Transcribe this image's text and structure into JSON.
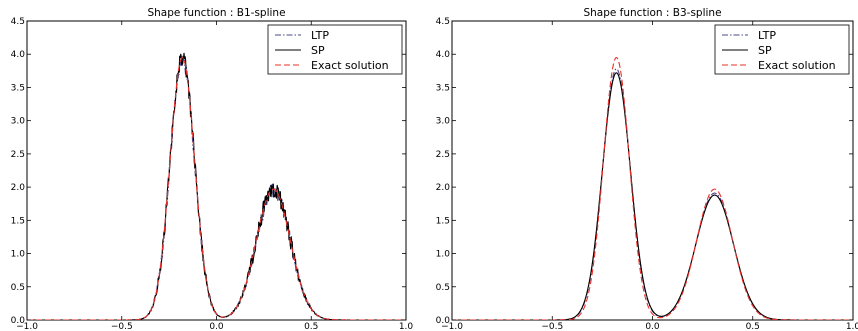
{
  "chart_data": [
    {
      "type": "line",
      "title": "Shape function : B1-spline",
      "xlim": [
        -1.0,
        1.0
      ],
      "ylim": [
        0.0,
        4.5
      ],
      "xticks": [
        -1.0,
        -0.5,
        0.0,
        0.5,
        1.0
      ],
      "xtick_labels": [
        "−1.0",
        "−0.5",
        "0.0",
        "0.5",
        "1.0"
      ],
      "yticks": [
        0.0,
        0.5,
        1.0,
        1.5,
        2.0,
        2.5,
        3.0,
        3.5,
        4.0,
        4.5
      ],
      "ytick_labels": [
        "0.0",
        "0.5",
        "1.0",
        "1.5",
        "2.0",
        "2.5",
        "3.0",
        "3.5",
        "4.0",
        "4.5"
      ],
      "grid": false,
      "legend_position": "top-right",
      "series": [
        {
          "name": "LTP",
          "style": "dashdot",
          "color": "#4a4a8c",
          "model": {
            "peaks": [
              [
                -0.18,
                3.92,
                0.065
              ],
              [
                0.3,
                1.95,
                0.09
              ]
            ],
            "noise": 0.11
          }
        },
        {
          "name": "SP",
          "style": "solid",
          "color": "#000000",
          "model": {
            "peaks": [
              [
                -0.18,
                3.95,
                0.065
              ],
              [
                0.3,
                1.97,
                0.09
              ]
            ],
            "noise": 0.13
          }
        },
        {
          "name": "Exact solution",
          "style": "dashed",
          "color": "#e8302a",
          "model": {
            "peaks": [
              [
                -0.18,
                3.95,
                0.065
              ],
              [
                0.3,
                1.97,
                0.09
              ]
            ],
            "noise": 0
          }
        }
      ]
    },
    {
      "type": "line",
      "title": "Shape function : B3-spline",
      "xlim": [
        -1.0,
        1.0
      ],
      "ylim": [
        0.0,
        4.5
      ],
      "xticks": [
        -1.0,
        -0.5,
        0.0,
        0.5,
        1.0
      ],
      "xtick_labels": [
        "−1.0",
        "−0.5",
        "0.0",
        "0.5",
        "1.0"
      ],
      "yticks": [
        0.0,
        0.5,
        1.0,
        1.5,
        2.0,
        2.5,
        3.0,
        3.5,
        4.0,
        4.5
      ],
      "ytick_labels": [
        "0.0",
        "0.5",
        "1.0",
        "1.5",
        "2.0",
        "2.5",
        "3.0",
        "3.5",
        "4.0",
        "4.5"
      ],
      "grid": false,
      "legend_position": "top-right",
      "series": [
        {
          "name": "LTP",
          "style": "dashdot",
          "color": "#4a4a8c",
          "model": {
            "peaks": [
              [
                -0.18,
                3.78,
                0.069
              ],
              [
                0.31,
                1.91,
                0.093
              ]
            ],
            "noise": 0
          }
        },
        {
          "name": "SP",
          "style": "solid",
          "color": "#000000",
          "model": {
            "peaks": [
              [
                -0.18,
                3.72,
                0.07
              ],
              [
                0.31,
                1.88,
                0.094
              ]
            ],
            "noise": 0
          }
        },
        {
          "name": "Exact solution",
          "style": "dashed",
          "color": "#e8302a",
          "model": {
            "peaks": [
              [
                -0.18,
                3.95,
                0.065
              ],
              [
                0.31,
                1.97,
                0.09
              ]
            ],
            "noise": 0
          }
        }
      ]
    }
  ]
}
